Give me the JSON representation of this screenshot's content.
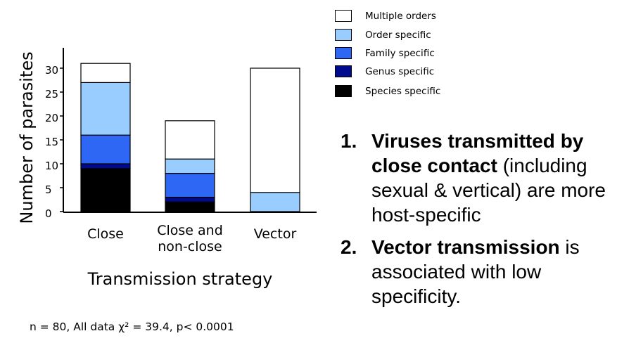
{
  "chart_data": {
    "type": "bar",
    "stacked": true,
    "categories": [
      [
        "Close"
      ],
      [
        "Close and",
        "non-close"
      ],
      [
        "Vector"
      ]
    ],
    "series": [
      {
        "name": "Species specific",
        "color": "#000000",
        "values": [
          9,
          2,
          0
        ]
      },
      {
        "name": "Genus specific",
        "color": "#000a8c",
        "values": [
          1,
          1,
          0
        ]
      },
      {
        "name": "Family specific",
        "color": "#2f67f5",
        "values": [
          6,
          5,
          0
        ]
      },
      {
        "name": "Order specific",
        "color": "#99ccff",
        "values": [
          11,
          3,
          4
        ]
      },
      {
        "name": "Multiple orders",
        "color": "#ffffff",
        "values": [
          4,
          8,
          26
        ]
      }
    ],
    "legend_order": [
      "Multiple orders",
      "Order specific",
      "Family specific",
      "Genus specific",
      "Species specific"
    ],
    "legend_position": "top-right",
    "ylim": [
      0,
      34
    ],
    "yticks": [
      0,
      5,
      10,
      15,
      20,
      25,
      30
    ],
    "ylabel": "Number of parasites",
    "xlabel": "Transmission strategy",
    "grid": false
  },
  "points": [
    {
      "num": "1.",
      "parts": [
        {
          "text": "Viruses transmitted by close contact",
          "bold": true
        },
        {
          "text": " (including sexual & vertical) are more host-specific",
          "bold": false
        }
      ]
    },
    {
      "num": "2.",
      "parts": [
        {
          "text": "Vector transmission",
          "bold": true
        },
        {
          "text": " is associated with low specificity.",
          "bold": false
        }
      ]
    }
  ],
  "footnote": "n = 80, All data χ² = 39.4, p< 0.0001"
}
